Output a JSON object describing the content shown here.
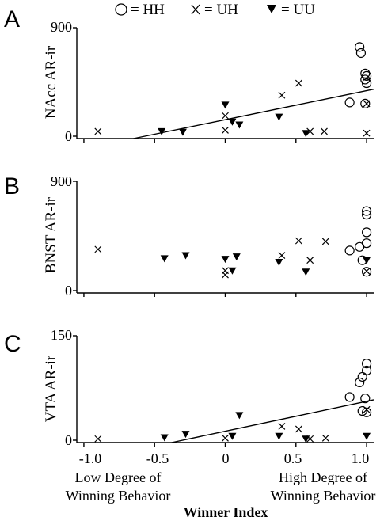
{
  "legend": [
    {
      "marker": "circle",
      "label": "= HH"
    },
    {
      "marker": "x",
      "label": "= UH"
    },
    {
      "marker": "triangle",
      "label": "= UU"
    }
  ],
  "x_axis": {
    "title": "Winner Index",
    "ticks": [
      "-1.0",
      "-0.5",
      "0",
      "0.5",
      "1.0"
    ],
    "tick_values": [
      -1.0,
      -0.5,
      0,
      0.5,
      1.0
    ],
    "range": [
      -1.05,
      1.05
    ],
    "low_note": [
      "Low Degree of",
      "Winning Behavior"
    ],
    "high_note": [
      "High Degree of",
      "Winning Behavior"
    ]
  },
  "chart_data": [
    {
      "type": "scatter",
      "panel": "A",
      "ylabel": "NAcc AR-ir",
      "ylim": [
        0,
        900
      ],
      "yticks": [
        "900",
        "0"
      ],
      "ytick_values": [
        900,
        0
      ],
      "regression": [
        [
          -0.65,
          0
        ],
        [
          1.05,
          390
        ]
      ],
      "series": [
        {
          "name": "HH",
          "points": [
            [
              0.95,
              740
            ],
            [
              0.96,
              690
            ],
            [
              0.99,
              520
            ],
            [
              1.0,
              500
            ],
            [
              0.99,
              470
            ],
            [
              1.0,
              440
            ],
            [
              0.88,
              280
            ],
            [
              0.99,
              270
            ]
          ]
        },
        {
          "name": "UH",
          "points": [
            [
              -0.9,
              40
            ],
            [
              0.0,
              170
            ],
            [
              0.0,
              50
            ],
            [
              0.4,
              340
            ],
            [
              0.52,
              440
            ],
            [
              0.6,
              40
            ],
            [
              0.7,
              40
            ],
            [
              1.0,
              25
            ],
            [
              1.0,
              270
            ]
          ]
        },
        {
          "name": "UU",
          "points": [
            [
              -0.45,
              40
            ],
            [
              -0.3,
              35
            ],
            [
              0.0,
              260
            ],
            [
              0.05,
              120
            ],
            [
              0.1,
              95
            ],
            [
              0.38,
              160
            ],
            [
              0.57,
              25
            ]
          ]
        }
      ]
    },
    {
      "type": "scatter",
      "panel": "B",
      "ylabel": "BNST AR-ir",
      "ylim": [
        0,
        900
      ],
      "yticks": [
        "900",
        "0"
      ],
      "ytick_values": [
        900,
        0
      ],
      "series": [
        {
          "name": "HH",
          "points": [
            [
              1.0,
              655
            ],
            [
              1.0,
              625
            ],
            [
              1.0,
              480
            ],
            [
              1.0,
              390
            ],
            [
              0.95,
              360
            ],
            [
              0.88,
              330
            ],
            [
              0.97,
              250
            ],
            [
              1.0,
              155
            ]
          ]
        },
        {
          "name": "UH",
          "points": [
            [
              -0.9,
              340
            ],
            [
              0.0,
              165
            ],
            [
              0.0,
              130
            ],
            [
              0.4,
              290
            ],
            [
              0.52,
              410
            ],
            [
              0.6,
              250
            ],
            [
              0.71,
              405
            ],
            [
              1.0,
              160
            ]
          ]
        },
        {
          "name": "UU",
          "points": [
            [
              -0.43,
              265
            ],
            [
              -0.28,
              290
            ],
            [
              0.0,
              260
            ],
            [
              0.05,
              165
            ],
            [
              0.08,
              280
            ],
            [
              0.38,
              235
            ],
            [
              0.57,
              155
            ],
            [
              1.0,
              250
            ]
          ]
        }
      ]
    },
    {
      "type": "scatter",
      "panel": "C",
      "ylabel": "VTA AR-ir",
      "ylim": [
        0,
        150
      ],
      "yticks": [
        "150",
        "0"
      ],
      "ytick_values": [
        150,
        0
      ],
      "regression": [
        [
          -0.38,
          0
        ],
        [
          1.05,
          58
        ]
      ],
      "series": [
        {
          "name": "HH",
          "points": [
            [
              1.0,
              110
            ],
            [
              1.0,
              100
            ],
            [
              0.97,
              91
            ],
            [
              0.95,
              83
            ],
            [
              0.88,
              62
            ],
            [
              0.99,
              60
            ],
            [
              0.97,
              42
            ],
            [
              1.0,
              40
            ]
          ]
        },
        {
          "name": "UH",
          "points": [
            [
              -0.9,
              2
            ],
            [
              0.0,
              3
            ],
            [
              0.4,
              20
            ],
            [
              0.52,
              16
            ],
            [
              0.6,
              2
            ],
            [
              0.71,
              3
            ],
            [
              1.0,
              44
            ]
          ]
        },
        {
          "name": "UU",
          "points": [
            [
              -0.43,
              4
            ],
            [
              -0.28,
              9
            ],
            [
              0.05,
              6
            ],
            [
              0.1,
              36
            ],
            [
              0.38,
              6
            ],
            [
              0.57,
              2
            ],
            [
              1.0,
              6
            ]
          ]
        }
      ]
    }
  ]
}
